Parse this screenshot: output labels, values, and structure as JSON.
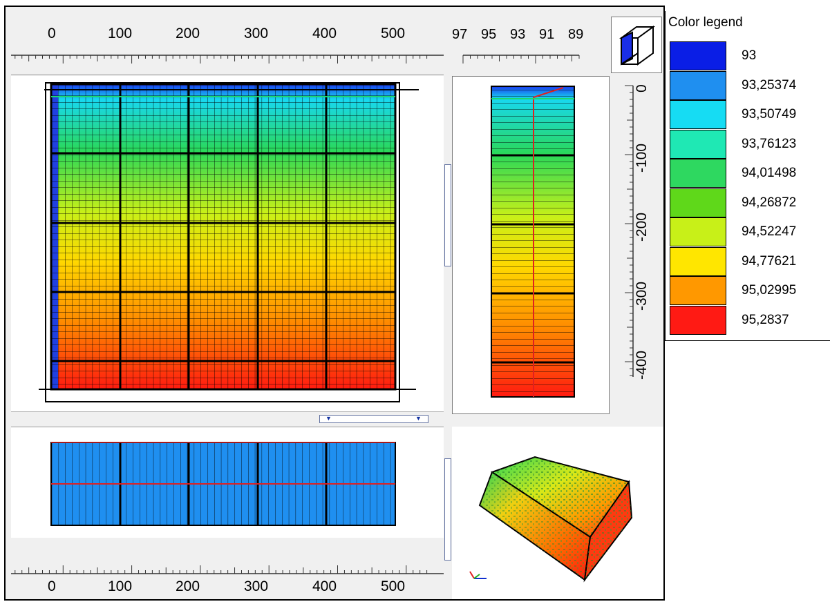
{
  "top_ruler": {
    "ticks": [
      "0",
      "100",
      "200",
      "300",
      "400",
      "500"
    ]
  },
  "bottom_ruler": {
    "ticks": [
      "0",
      "100",
      "200",
      "300",
      "400",
      "500"
    ]
  },
  "side_top_ruler": {
    "ticks": [
      "97",
      "95",
      "93",
      "91",
      "89"
    ]
  },
  "vertical_ruler": {
    "ticks": [
      "0",
      "-100",
      "-200",
      "-300",
      "-400"
    ]
  },
  "legend": {
    "title": "Color legend",
    "entries": [
      {
        "value": "93",
        "color": "#0a1ee6"
      },
      {
        "value": "93,25374",
        "color": "#1f8ff0"
      },
      {
        "value": "93,50749",
        "color": "#16dcf3"
      },
      {
        "value": "93,76123",
        "color": "#1fe8b4"
      },
      {
        "value": "94,01498",
        "color": "#2ed860"
      },
      {
        "value": "94,26872",
        "color": "#5fd81a"
      },
      {
        "value": "94,52247",
        "color": "#c8f018"
      },
      {
        "value": "94,77621",
        "color": "#ffe600"
      },
      {
        "value": "95,02995",
        "color": "#ff9800"
      },
      {
        "value": "95,2837",
        "color": "#ff1a14"
      }
    ]
  },
  "icons": {
    "view_cube": "view-cube-icon",
    "axes": "axis-triad-icon"
  }
}
